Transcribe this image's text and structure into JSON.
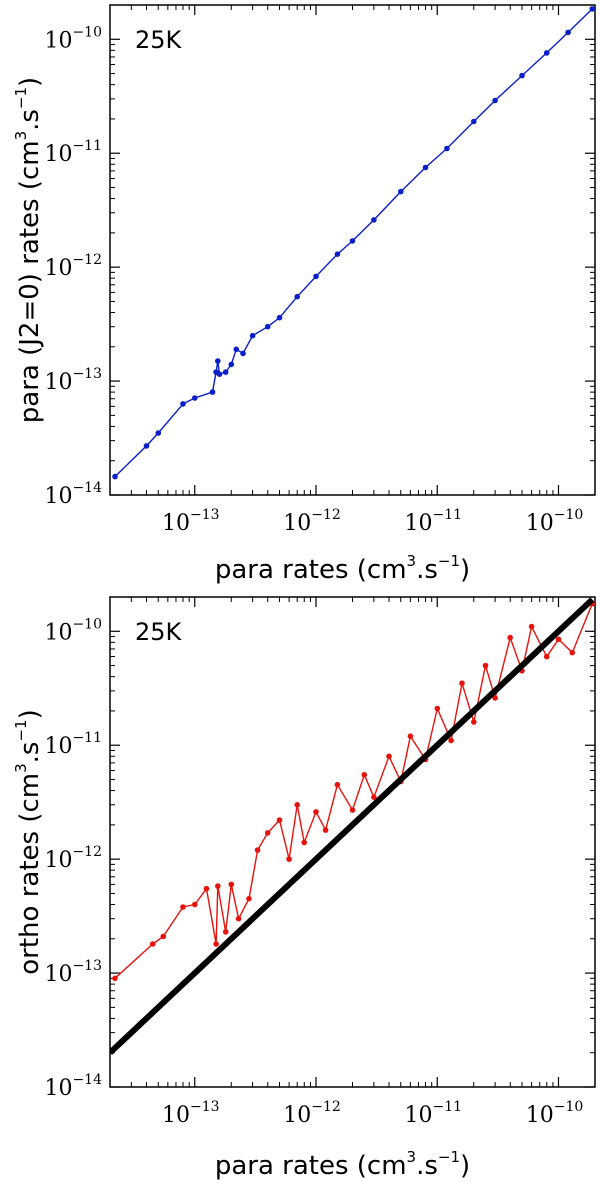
{
  "chart_data": [
    {
      "type": "line",
      "annotation": "25K",
      "xlabel": "para rates (cm^3.s^-1)",
      "xlabel_parts": {
        "main": "para rates (cm",
        "sup1": "3",
        "mid": ".s",
        "sup2": "−1",
        "end": ")"
      },
      "ylabel": "para (J2=0) rates (cm^3.s^-1)",
      "ylabel_parts": {
        "main": "para (J2=0) rates (cm",
        "sup1": "3",
        "mid": ".s",
        "sup2": "−1",
        "end": ")"
      },
      "xscale": "log",
      "yscale": "log",
      "xlim": [
        2e-14,
        2e-10
      ],
      "ylim": [
        1e-14,
        2e-10
      ],
      "x_ticks": [
        {
          "base": "10",
          "exp": "−13",
          "value": 1e-13
        },
        {
          "base": "10",
          "exp": "−12",
          "value": 1e-12
        },
        {
          "base": "10",
          "exp": "−11",
          "value": 1e-11
        },
        {
          "base": "10",
          "exp": "−10",
          "value": 1e-10
        }
      ],
      "y_ticks": [
        {
          "base": "10",
          "exp": "−14",
          "value": 1e-14
        },
        {
          "base": "10",
          "exp": "−13",
          "value": 1e-13
        },
        {
          "base": "10",
          "exp": "−12",
          "value": 1e-12
        },
        {
          "base": "10",
          "exp": "−11",
          "value": 1e-11
        },
        {
          "base": "10",
          "exp": "−10",
          "value": 1e-10
        }
      ],
      "series": [
        {
          "name": "para (J2=0)",
          "color": "#0a1fc8",
          "x": [
            2.2e-14,
            4e-14,
            5e-14,
            8e-14,
            1e-13,
            1.4e-13,
            1.5e-13,
            1.55e-13,
            1.6e-13,
            1.8e-13,
            2e-13,
            2.2e-13,
            2.5e-13,
            3e-13,
            4e-13,
            5e-13,
            7e-13,
            1e-12,
            1.5e-12,
            2e-12,
            3e-12,
            5e-12,
            8e-12,
            1.2e-11,
            2e-11,
            3e-11,
            5e-11,
            8e-11,
            1.2e-10,
            1.9e-10
          ],
          "y": [
            1.45e-14,
            2.7e-14,
            3.5e-14,
            6.3e-14,
            7.1e-14,
            8e-14,
            1.2e-13,
            1.5e-13,
            1.15e-13,
            1.2e-13,
            1.4e-13,
            1.9e-13,
            1.75e-13,
            2.5e-13,
            3e-13,
            3.6e-13,
            5.5e-13,
            8.3e-13,
            1.3e-12,
            1.7e-12,
            2.6e-12,
            4.6e-12,
            7.5e-12,
            1.1e-11,
            1.9e-11,
            2.9e-11,
            4.8e-11,
            7.6e-11,
            1.15e-10,
            1.85e-10
          ]
        }
      ]
    },
    {
      "type": "line",
      "annotation": "25K",
      "xlabel": "para rates (cm^3.s^-1)",
      "xlabel_parts": {
        "main": "para rates (cm",
        "sup1": "3",
        "mid": ".s",
        "sup2": "−1",
        "end": ")"
      },
      "ylabel": "ortho rates (cm^3.s^-1)",
      "ylabel_parts": {
        "main": "ortho rates (cm",
        "sup1": "3",
        "mid": ".s",
        "sup2": "−1",
        "end": ")"
      },
      "xscale": "log",
      "yscale": "log",
      "xlim": [
        2e-14,
        2e-10
      ],
      "ylim": [
        1e-14,
        2e-10
      ],
      "x_ticks": [
        {
          "base": "10",
          "exp": "−13",
          "value": 1e-13
        },
        {
          "base": "10",
          "exp": "−12",
          "value": 1e-12
        },
        {
          "base": "10",
          "exp": "−11",
          "value": 1e-11
        },
        {
          "base": "10",
          "exp": "−10",
          "value": 1e-10
        }
      ],
      "y_ticks": [
        {
          "base": "10",
          "exp": "−14",
          "value": 1e-14
        },
        {
          "base": "10",
          "exp": "−13",
          "value": 1e-13
        },
        {
          "base": "10",
          "exp": "−12",
          "value": 1e-12
        },
        {
          "base": "10",
          "exp": "−11",
          "value": 1e-11
        },
        {
          "base": "10",
          "exp": "−10",
          "value": 1e-10
        }
      ],
      "series": [
        {
          "name": "ortho",
          "color": "#e8120c",
          "x": [
            2.2e-14,
            4.5e-14,
            5.5e-14,
            8e-14,
            1e-13,
            1.25e-13,
            1.5e-13,
            1.55e-13,
            1.8e-13,
            2e-13,
            2.3e-13,
            2.8e-13,
            3.3e-13,
            4e-13,
            5e-13,
            6e-13,
            7e-13,
            8e-13,
            1e-12,
            1.2e-12,
            1.5e-12,
            2e-12,
            2.5e-12,
            3e-12,
            4e-12,
            5e-12,
            6e-12,
            8e-12,
            1e-11,
            1.3e-11,
            1.6e-11,
            2e-11,
            2.5e-11,
            3e-11,
            4e-11,
            5e-11,
            6e-11,
            8e-11,
            1e-10,
            1.3e-10,
            1.9e-10
          ],
          "y": [
            9e-14,
            1.8e-13,
            2.1e-13,
            3.8e-13,
            4e-13,
            5.5e-13,
            1.8e-13,
            5.8e-13,
            2.3e-13,
            6e-13,
            3e-13,
            4.5e-13,
            1.2e-12,
            1.7e-12,
            2.2e-12,
            1e-12,
            3e-12,
            1.4e-12,
            2.6e-12,
            1.8e-12,
            4.5e-12,
            2.7e-12,
            5.5e-12,
            3.5e-12,
            8e-12,
            4.8e-12,
            1.2e-11,
            7.5e-12,
            2.1e-11,
            1.1e-11,
            3.5e-11,
            1.6e-11,
            5e-11,
            2.6e-11,
            8.8e-11,
            4.5e-11,
            1.1e-10,
            6e-11,
            8.5e-11,
            6.5e-11,
            1.75e-10
          ]
        },
        {
          "name": "y=x",
          "color": "#000000",
          "x": [
            2e-14,
            1.9e-10
          ],
          "y": [
            2e-14,
            1.9e-10
          ]
        }
      ]
    }
  ]
}
